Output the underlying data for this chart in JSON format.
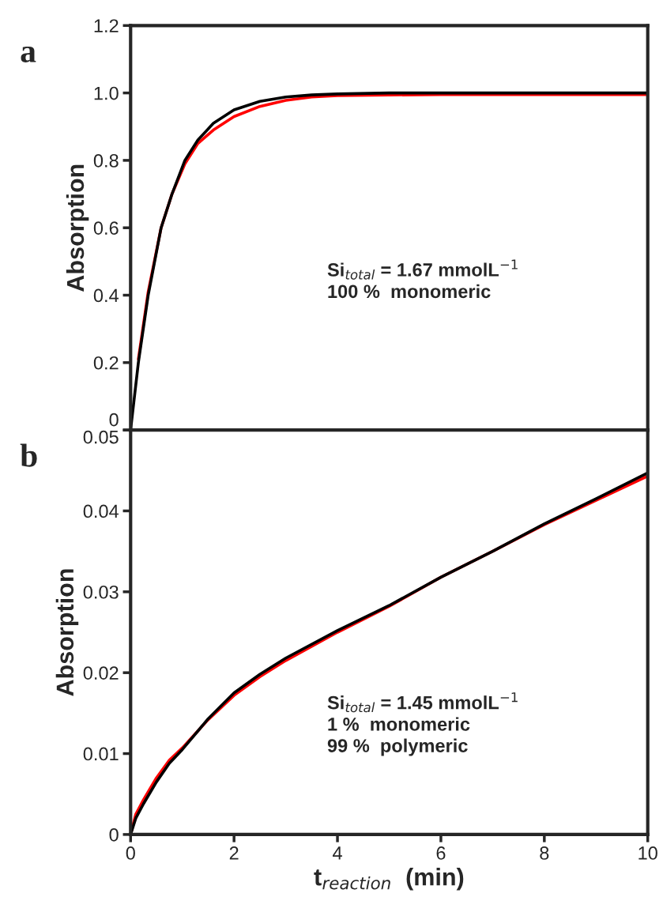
{
  "chart_data": [
    {
      "type": "line",
      "ylabel": "Absorption",
      "x": [
        0,
        0.15,
        0.34,
        0.59,
        0.8,
        1.05,
        1.3,
        1.6,
        2.0,
        2.5,
        3.0,
        3.5,
        4,
        5,
        6,
        8,
        10
      ],
      "xlim": [
        0,
        10
      ],
      "xticks": [
        0,
        2,
        4,
        6,
        8,
        10
      ],
      "ylim": [
        0,
        1.2
      ],
      "yticks": [
        0,
        0.2,
        0.4,
        0.6,
        0.8,
        {
          "value": 1.0,
          "label": "1.0"
        },
        1.2
      ],
      "tick_labels": "y",
      "grid": false,
      "legend": false,
      "series": [
        {
          "color": "#ff0000",
          "values": [
            null,
            0.21,
            0.41,
            0.6,
            0.7,
            0.79,
            0.85,
            0.89,
            0.93,
            0.96,
            0.978,
            0.988,
            0.992,
            0.994,
            0.995,
            0.995,
            0.995
          ]
        },
        {
          "color": "#000000",
          "values": [
            0,
            0.2,
            0.4,
            0.6,
            0.7,
            0.8,
            0.86,
            0.91,
            0.95,
            0.975,
            0.988,
            0.994,
            0.997,
            1.0,
            1.0,
            1.0,
            1.0
          ]
        }
      ],
      "annotations": [
        "a",
        "Si$_{total}$ = 1.67 mmolL$^{−1}$\n100 %  monomeric"
      ]
    },
    {
      "type": "line",
      "ylabel": "Absorption",
      "xlabel": "t$_{reaction}$  (min)",
      "x": [
        0,
        0.1,
        0.25,
        0.5,
        0.75,
        1,
        1.5,
        2,
        2.5,
        3,
        4,
        5,
        6,
        7,
        8,
        9,
        10
      ],
      "xlim": [
        0,
        10
      ],
      "xticks": [
        0,
        2,
        4,
        6,
        8,
        10
      ],
      "ylim": [
        0,
        0.05
      ],
      "yticks": [
        0,
        0.01,
        0.02,
        0.03,
        0.04,
        0.05
      ],
      "grid": false,
      "legend": false,
      "series": [
        {
          "color": "#ff0000",
          "values": [
            0,
            0.0025,
            0.0043,
            0.007,
            0.0092,
            0.0107,
            0.0142,
            0.0172,
            0.0195,
            0.0215,
            0.025,
            0.0282,
            0.0318,
            0.035,
            0.0383,
            0.0413,
            0.0443
          ]
        },
        {
          "color": "#000000",
          "values": [
            0,
            0.002,
            0.0038,
            0.0065,
            0.0088,
            0.0105,
            0.0143,
            0.0175,
            0.0198,
            0.0218,
            0.0252,
            0.0283,
            0.0318,
            0.035,
            0.0384,
            0.0415,
            0.0447
          ]
        }
      ],
      "annotations": [
        "b",
        "Si$_{total}$ = 1.45 mmolL$^{−1}$\n1 %  monomeric\n99 %  polymeric"
      ]
    }
  ]
}
